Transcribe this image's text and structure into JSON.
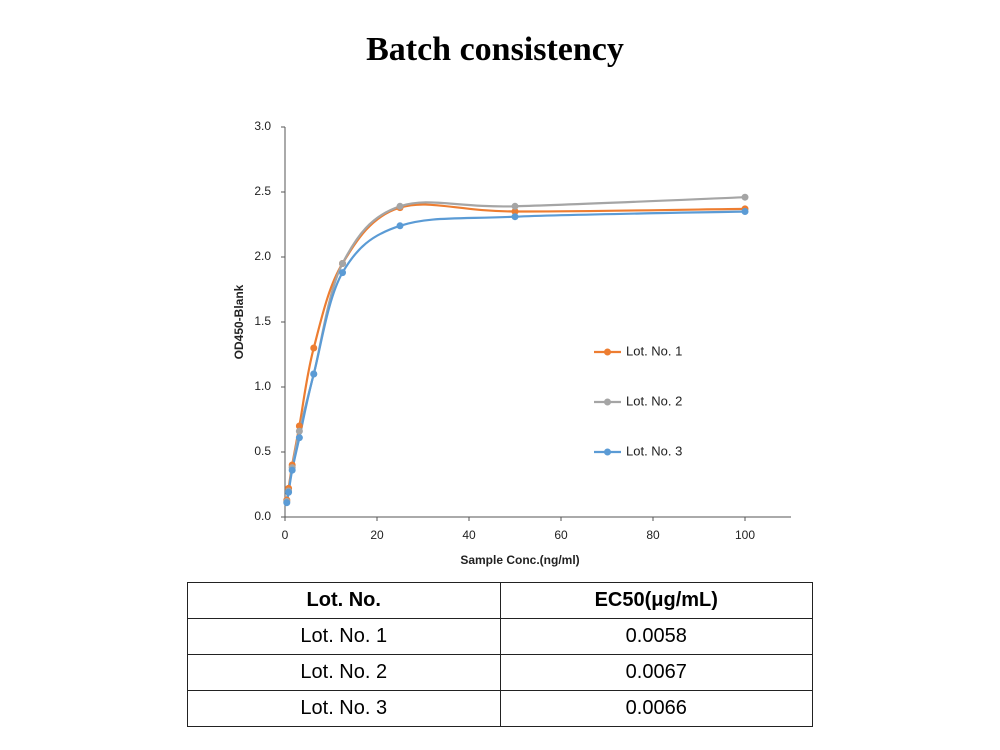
{
  "chart_data": {
    "type": "line",
    "title": "Batch consistency",
    "x_label": "Sample Conc.(ng/ml)",
    "y_label": "OD450-Blank",
    "x": [
      0.39,
      0.78,
      1.56,
      3.125,
      6.25,
      12.5,
      25,
      50,
      100
    ],
    "series": [
      {
        "name": "Lot. No. 1",
        "color": "#ed7d31",
        "values": [
          0.13,
          0.22,
          0.4,
          0.7,
          1.3,
          1.95,
          2.38,
          2.35,
          2.37
        ]
      },
      {
        "name": "Lot. No. 2",
        "color": "#a5a5a5",
        "values": [
          0.12,
          0.2,
          0.38,
          0.66,
          1.1,
          1.95,
          2.39,
          2.39,
          2.46
        ]
      },
      {
        "name": "Lot. No. 3",
        "color": "#5b9bd5",
        "values": [
          0.11,
          0.19,
          0.36,
          0.61,
          1.1,
          1.88,
          2.24,
          2.31,
          2.35
        ]
      }
    ],
    "xlim": [
      0,
      110
    ],
    "xticks": [
      0,
      20,
      40,
      60,
      80,
      100
    ],
    "ylim": [
      0,
      3
    ],
    "yticks": [
      {
        "value": 0,
        "label": "0.0"
      },
      0.5,
      {
        "value": 1,
        "label": "1.0"
      },
      1.5,
      {
        "value": 2,
        "label": "2.0"
      },
      2.5,
      {
        "value": 3,
        "label": "3.0"
      }
    ],
    "grid": false,
    "legend": "right",
    "smooth": true
  },
  "table": {
    "header": [
      "Lot. No.",
      "EC50(μg/mL)"
    ],
    "rows": [
      [
        "Lot. No. 1",
        "0.0058"
      ],
      [
        "Lot. No. 2",
        "0.0067"
      ],
      [
        "Lot. No. 3",
        "0.0066"
      ]
    ]
  }
}
